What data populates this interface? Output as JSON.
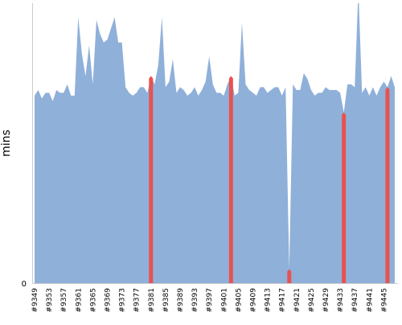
{
  "chart_data": {
    "type": "area",
    "y_label": "mins",
    "categories": [
      "#9349",
      null,
      null,
      null,
      "#9353",
      null,
      null,
      null,
      "#9357",
      null,
      null,
      null,
      "#9361",
      null,
      null,
      null,
      "#9365",
      null,
      null,
      null,
      "#9369",
      null,
      null,
      null,
      "#9373",
      null,
      null,
      null,
      "#9377",
      null,
      null,
      null,
      "#9381",
      null,
      null,
      null,
      "#9385",
      null,
      null,
      null,
      "#9389",
      null,
      null,
      null,
      "#9393",
      null,
      null,
      null,
      "#9397",
      null,
      null,
      null,
      "#9401",
      null,
      null,
      null,
      "#9405",
      null,
      null,
      null,
      "#9409",
      null,
      null,
      null,
      "#9413",
      null,
      null,
      null,
      "#9417",
      null,
      null,
      null,
      "#9421",
      null,
      null,
      null,
      "#9425",
      null,
      null,
      null,
      "#9429",
      null,
      null,
      null,
      "#9433",
      null,
      null,
      null,
      "#9437",
      null,
      null,
      null,
      "#9441",
      null,
      null,
      null,
      "#9445",
      null,
      null,
      null
    ],
    "series": [
      {
        "color": "#8fb0d9",
        "values": [
          67,
          69,
          66,
          68,
          68,
          65,
          69,
          68,
          68,
          71,
          67,
          67,
          95,
          82,
          74,
          85,
          71,
          94,
          89,
          86,
          87,
          91,
          95,
          86,
          86,
          70,
          68,
          67,
          68,
          70,
          70,
          68,
          74,
          71,
          78,
          95,
          70,
          72,
          80,
          68,
          70,
          69,
          67,
          68,
          70,
          67,
          69,
          72,
          81,
          71,
          68,
          68,
          67,
          71,
          74,
          67,
          68,
          93,
          71,
          69,
          68,
          67,
          70,
          70,
          68,
          69,
          70,
          70,
          67,
          70,
          5,
          71,
          69,
          69,
          75,
          73,
          69,
          67,
          68,
          68,
          70,
          69,
          69,
          69,
          68,
          61,
          71,
          71,
          70,
          105,
          68,
          70,
          67,
          70,
          67,
          70,
          72,
          70,
          74,
          70
        ]
      },
      {
        "color": "#e8524f",
        "values": [
          null,
          null,
          null,
          null,
          null,
          null,
          null,
          null,
          null,
          null,
          null,
          null,
          null,
          null,
          null,
          null,
          null,
          null,
          null,
          null,
          null,
          null,
          null,
          null,
          null,
          null,
          null,
          null,
          null,
          null,
          null,
          null,
          74,
          null,
          null,
          null,
          null,
          null,
          null,
          null,
          null,
          null,
          null,
          null,
          null,
          null,
          null,
          null,
          null,
          null,
          null,
          null,
          null,
          null,
          74,
          null,
          null,
          null,
          null,
          null,
          null,
          null,
          null,
          null,
          null,
          null,
          null,
          null,
          null,
          null,
          5,
          null,
          null,
          null,
          null,
          null,
          null,
          null,
          null,
          null,
          null,
          null,
          null,
          null,
          null,
          61,
          null,
          null,
          null,
          null,
          null,
          null,
          null,
          null,
          null,
          null,
          null,
          70,
          null,
          null
        ]
      }
    ],
    "ylim": [
      0,
      100
    ],
    "yticks": [
      0
    ]
  }
}
